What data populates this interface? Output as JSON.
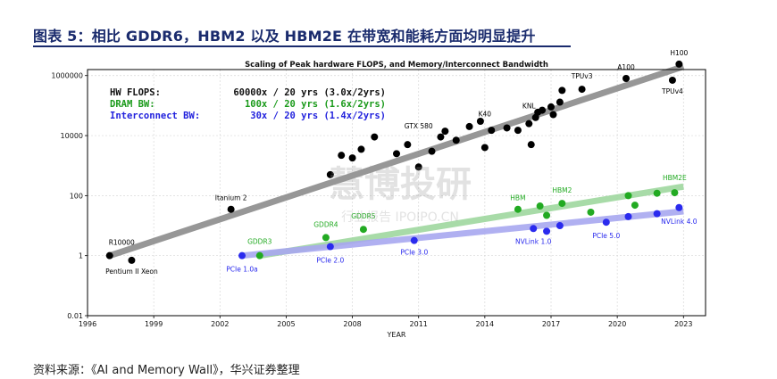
{
  "page": {
    "figure_title": "图表 5：相比 GDDR6，HBM2 以及 HBM2E 在带宽和能耗方面均明显提升",
    "source": "资料来源：《AI and Memory Wall》，华兴证券整理",
    "watermark_main": "慧博投研",
    "watermark_sub": "行业报告 IPOIPO.CN"
  },
  "chart_data": {
    "type": "scatter",
    "title": "Scaling of Peak hardware FLOPS, and Memory/Interconnect Bandwidth",
    "xlabel": "YEAR",
    "ylabel": "",
    "xlim": [
      1996,
      2024
    ],
    "ylim_log10": [
      -2,
      6.2
    ],
    "yscale": "log",
    "grid": true,
    "x_ticks": [
      1996,
      1999,
      2002,
      2005,
      2008,
      2011,
      2014,
      2017,
      2020,
      2023
    ],
    "y_ticks": [
      {
        "value": 0.01,
        "label": "0.01"
      },
      {
        "value": 1,
        "label": "1"
      },
      {
        "value": 100,
        "label": "100"
      },
      {
        "value": 10000,
        "label": "10000"
      },
      {
        "value": 1000000,
        "label": "1000000"
      }
    ],
    "legend_text": [
      {
        "label": "HW FLOPS:",
        "value": "60000x / 20 yrs (3.0x/2yrs)",
        "color": "#111111"
      },
      {
        "label": "DRAM BW:",
        "value": "100x / 20 yrs (1.6x/2yrs)",
        "color": "#1a9a1a"
      },
      {
        "label": "Interconnect BW:",
        "value": "30x / 20 yrs (1.4x/2yrs)",
        "color": "#2222dd"
      }
    ],
    "series": [
      {
        "name": "HW FLOPS",
        "color": "#000000",
        "trend_color": "#8c8c8c",
        "trend": [
          [
            1997,
            1
          ],
          [
            2023,
            2000000
          ]
        ],
        "points": [
          [
            1997.0,
            1
          ],
          [
            1998.0,
            0.7
          ],
          [
            2002.5,
            35
          ],
          [
            2007.0,
            500
          ],
          [
            2007.5,
            2200
          ],
          [
            2008.0,
            1800
          ],
          [
            2008.4,
            3500
          ],
          [
            2009.0,
            9000
          ],
          [
            2010.0,
            2500
          ],
          [
            2010.5,
            5000
          ],
          [
            2011.0,
            900
          ],
          [
            2011.6,
            3000
          ],
          [
            2012.0,
            9000
          ],
          [
            2012.2,
            14000
          ],
          [
            2012.7,
            7000
          ],
          [
            2013.3,
            20000
          ],
          [
            2013.8,
            30000
          ],
          [
            2014.0,
            4000
          ],
          [
            2014.3,
            15000
          ],
          [
            2015.0,
            18000
          ],
          [
            2015.5,
            15000
          ],
          [
            2016.0,
            25000
          ],
          [
            2016.1,
            5000
          ],
          [
            2016.3,
            40000
          ],
          [
            2016.4,
            60000
          ],
          [
            2016.6,
            70000
          ],
          [
            2017.0,
            90000
          ],
          [
            2017.1,
            50000
          ],
          [
            2017.4,
            130000
          ],
          [
            2017.5,
            320000
          ],
          [
            2018.4,
            350000
          ],
          [
            2020.4,
            800000
          ],
          [
            2022.5,
            700000
          ],
          [
            2022.8,
            2400000
          ]
        ],
        "labels": [
          {
            "text": "R10000",
            "x": 1997.0,
            "y": 1,
            "anchor": "start",
            "dx": -1,
            "dy": -12
          },
          {
            "text": "Pentium II Xeon",
            "x": 1998.0,
            "y": 0.7,
            "anchor": "middle",
            "dx": 0,
            "dy": 15
          },
          {
            "text": "Itanium 2",
            "x": 2002.5,
            "y": 35,
            "anchor": "middle",
            "dx": 0,
            "dy": -10
          },
          {
            "text": "GTX 580",
            "x": 2011.0,
            "y": 900,
            "anchor": "middle",
            "dx": 0,
            "dy": -43
          },
          {
            "text": "K40",
            "x": 2014.0,
            "y": 4000,
            "anchor": "middle",
            "dx": 0,
            "dy": -35
          },
          {
            "text": "KNL",
            "x": 2016.0,
            "y": 25000,
            "anchor": "middle",
            "dx": 0,
            "dy": -17
          },
          {
            "text": "TPUv3",
            "x": 2018.4,
            "y": 350000,
            "anchor": "middle",
            "dx": 0,
            "dy": -12
          },
          {
            "text": "A100",
            "x": 2020.4,
            "y": 800000,
            "anchor": "middle",
            "dx": 0,
            "dy": -10
          },
          {
            "text": "H100",
            "x": 2022.8,
            "y": 2400000,
            "anchor": "middle",
            "dx": 0,
            "dy": -10
          },
          {
            "text": "TPUv4",
            "x": 2022.5,
            "y": 700000,
            "anchor": "middle",
            "dx": 0,
            "dy": 15
          }
        ]
      },
      {
        "name": "DRAM BW",
        "color": "#22aa22",
        "trend_color": "#9fd89f",
        "trend": [
          [
            2003.8,
            1
          ],
          [
            2023,
            200
          ]
        ],
        "points": [
          [
            2003.8,
            1
          ],
          [
            2006.8,
            4
          ],
          [
            2008.5,
            7.5
          ],
          [
            2015.5,
            35
          ],
          [
            2016.5,
            45
          ],
          [
            2016.8,
            22
          ],
          [
            2017.5,
            55
          ],
          [
            2018.8,
            28
          ],
          [
            2020.5,
            100
          ],
          [
            2020.8,
            48
          ],
          [
            2021.8,
            120
          ],
          [
            2022.6,
            125
          ]
        ],
        "labels": [
          {
            "text": "GDDR3",
            "x": 2003.8,
            "y": 1,
            "anchor": "middle",
            "dx": 0,
            "dy": -13
          },
          {
            "text": "GDDR4",
            "x": 2006.8,
            "y": 4,
            "anchor": "middle",
            "dx": 0,
            "dy": -12
          },
          {
            "text": "GDDR5",
            "x": 2008.5,
            "y": 7.5,
            "anchor": "middle",
            "dx": 0,
            "dy": -12
          },
          {
            "text": "HBM",
            "x": 2015.5,
            "y": 35,
            "anchor": "middle",
            "dx": 0,
            "dy": -10
          },
          {
            "text": "HBM2",
            "x": 2017.5,
            "y": 55,
            "anchor": "middle",
            "dx": 0,
            "dy": -12
          },
          {
            "text": "HBM2E",
            "x": 2022.6,
            "y": 125,
            "anchor": "middle",
            "dx": 0,
            "dy": -14
          }
        ]
      },
      {
        "name": "Interconnect BW",
        "color": "#2a2aee",
        "trend_color": "#a8a8f0",
        "trend": [
          [
            2003,
            1
          ],
          [
            2023,
            30
          ]
        ],
        "points": [
          [
            2003.0,
            1
          ],
          [
            2007.0,
            2
          ],
          [
            2010.8,
            3.2
          ],
          [
            2016.2,
            8
          ],
          [
            2016.8,
            6.5
          ],
          [
            2017.4,
            10
          ],
          [
            2019.5,
            13
          ],
          [
            2020.5,
            20
          ],
          [
            2021.8,
            25
          ],
          [
            2022.8,
            40
          ]
        ],
        "labels": [
          {
            "text": "PCIe 1.0a",
            "x": 2003.0,
            "y": 1,
            "anchor": "middle",
            "dx": 0,
            "dy": 18
          },
          {
            "text": "PCIe 2.0",
            "x": 2007.0,
            "y": 2,
            "anchor": "middle",
            "dx": 0,
            "dy": 18
          },
          {
            "text": "PCIe 3.0",
            "x": 2010.8,
            "y": 3.2,
            "anchor": "middle",
            "dx": 0,
            "dy": 16
          },
          {
            "text": "NVLink 1.0",
            "x": 2016.2,
            "y": 8,
            "anchor": "middle",
            "dx": 0,
            "dy": 17
          },
          {
            "text": "PCIe 5.0",
            "x": 2019.5,
            "y": 13,
            "anchor": "middle",
            "dx": 0,
            "dy": 18
          },
          {
            "text": "NVLink 4.0",
            "x": 2022.8,
            "y": 40,
            "anchor": "middle",
            "dx": 0,
            "dy": 18
          }
        ]
      }
    ]
  }
}
